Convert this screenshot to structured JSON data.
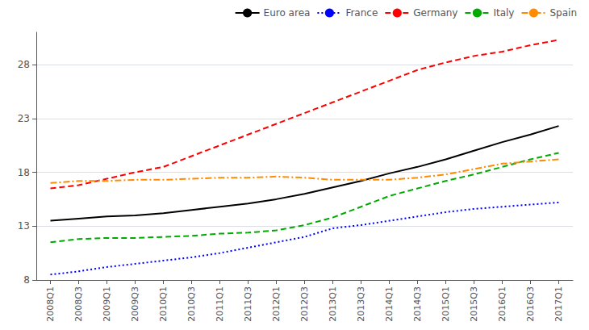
{
  "chart_data": {
    "type": "line",
    "categories": [
      "2008Q1",
      "2008Q3",
      "2009Q1",
      "2009Q3",
      "2010Q1",
      "2010Q3",
      "2011Q1",
      "2011Q3",
      "2012Q1",
      "2012Q3",
      "2013Q1",
      "2013Q3",
      "2014Q1",
      "2014Q3",
      "2015Q1",
      "2015Q3",
      "2016Q1",
      "2016Q3",
      "2017Q1"
    ],
    "series": [
      {
        "name": "Euro area",
        "color": "#000000",
        "line_style": "solid",
        "values": [
          13.5,
          13.7,
          13.9,
          14.0,
          14.2,
          14.5,
          14.8,
          15.1,
          15.5,
          16.0,
          16.6,
          17.2,
          17.9,
          18.5,
          19.2,
          20.0,
          20.8,
          21.5,
          22.3
        ]
      },
      {
        "name": "France",
        "color": "#0000ff",
        "line_style": "dotted",
        "values": [
          8.5,
          8.8,
          9.2,
          9.5,
          9.8,
          10.1,
          10.5,
          11.0,
          11.5,
          12.0,
          12.8,
          13.1,
          13.5,
          13.9,
          14.3,
          14.6,
          14.8,
          15.0,
          15.2
        ]
      },
      {
        "name": "Germany",
        "color": "#ff0000",
        "line_style": "dashed",
        "values": [
          16.5,
          16.8,
          17.4,
          18.0,
          18.5,
          19.5,
          20.5,
          21.5,
          22.5,
          23.5,
          24.5,
          25.5,
          26.5,
          27.5,
          28.2,
          28.8,
          29.2,
          29.8,
          30.3
        ]
      },
      {
        "name": "Italy",
        "color": "#00aa00",
        "line_style": "dashed",
        "values": [
          11.5,
          11.8,
          11.9,
          11.9,
          12.0,
          12.1,
          12.3,
          12.4,
          12.6,
          13.1,
          13.8,
          14.8,
          15.8,
          16.5,
          17.2,
          17.8,
          18.5,
          19.2,
          19.8
        ]
      },
      {
        "name": "Spain",
        "color": "#ff8c00",
        "line_style": "dashdot",
        "values": [
          17.0,
          17.2,
          17.2,
          17.3,
          17.3,
          17.4,
          17.5,
          17.5,
          17.6,
          17.5,
          17.3,
          17.3,
          17.3,
          17.5,
          17.8,
          18.3,
          18.8,
          19.0,
          19.2
        ]
      }
    ],
    "ylim": [
      8,
      31
    ],
    "yticks": [
      8,
      13,
      18,
      23,
      28
    ],
    "grid": true,
    "legend": "upper right"
  }
}
